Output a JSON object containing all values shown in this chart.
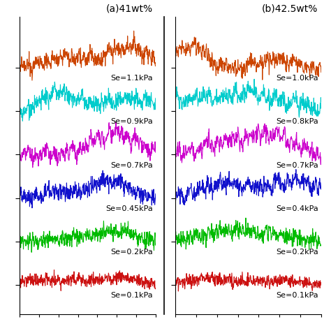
{
  "panel_a_title": "(a)41wt%",
  "panel_b_title": "(b)42.5wt%",
  "panel_a_labels": [
    "Se=1.1kPa",
    "Se=0.9kPa",
    "Se=0.7kPa",
    "Se=0.45kPa",
    "Se=0.2kPa",
    "Se=0.1kPa"
  ],
  "panel_b_labels": [
    "Se=1.0kPa",
    "Se=0.8kPa",
    "Se=0.7kPa",
    "Se=0.4kPa",
    "Se=0.2kPa",
    "Se=0.1kPa"
  ],
  "colors": [
    "#cc4400",
    "#00cccc",
    "#cc00cc",
    "#1010cc",
    "#00bb00",
    "#cc1111"
  ],
  "background_color": "#ffffff",
  "n_points": 500,
  "offsets": [
    5.5,
    4.4,
    3.3,
    2.2,
    1.1,
    0.0
  ],
  "bump_amps": [
    0.55,
    0.5,
    0.55,
    0.45,
    0.3,
    0.18
  ],
  "noise_scale": [
    0.1,
    0.1,
    0.1,
    0.1,
    0.1,
    0.08
  ],
  "title_fontsize": 10,
  "label_fontsize": 8
}
